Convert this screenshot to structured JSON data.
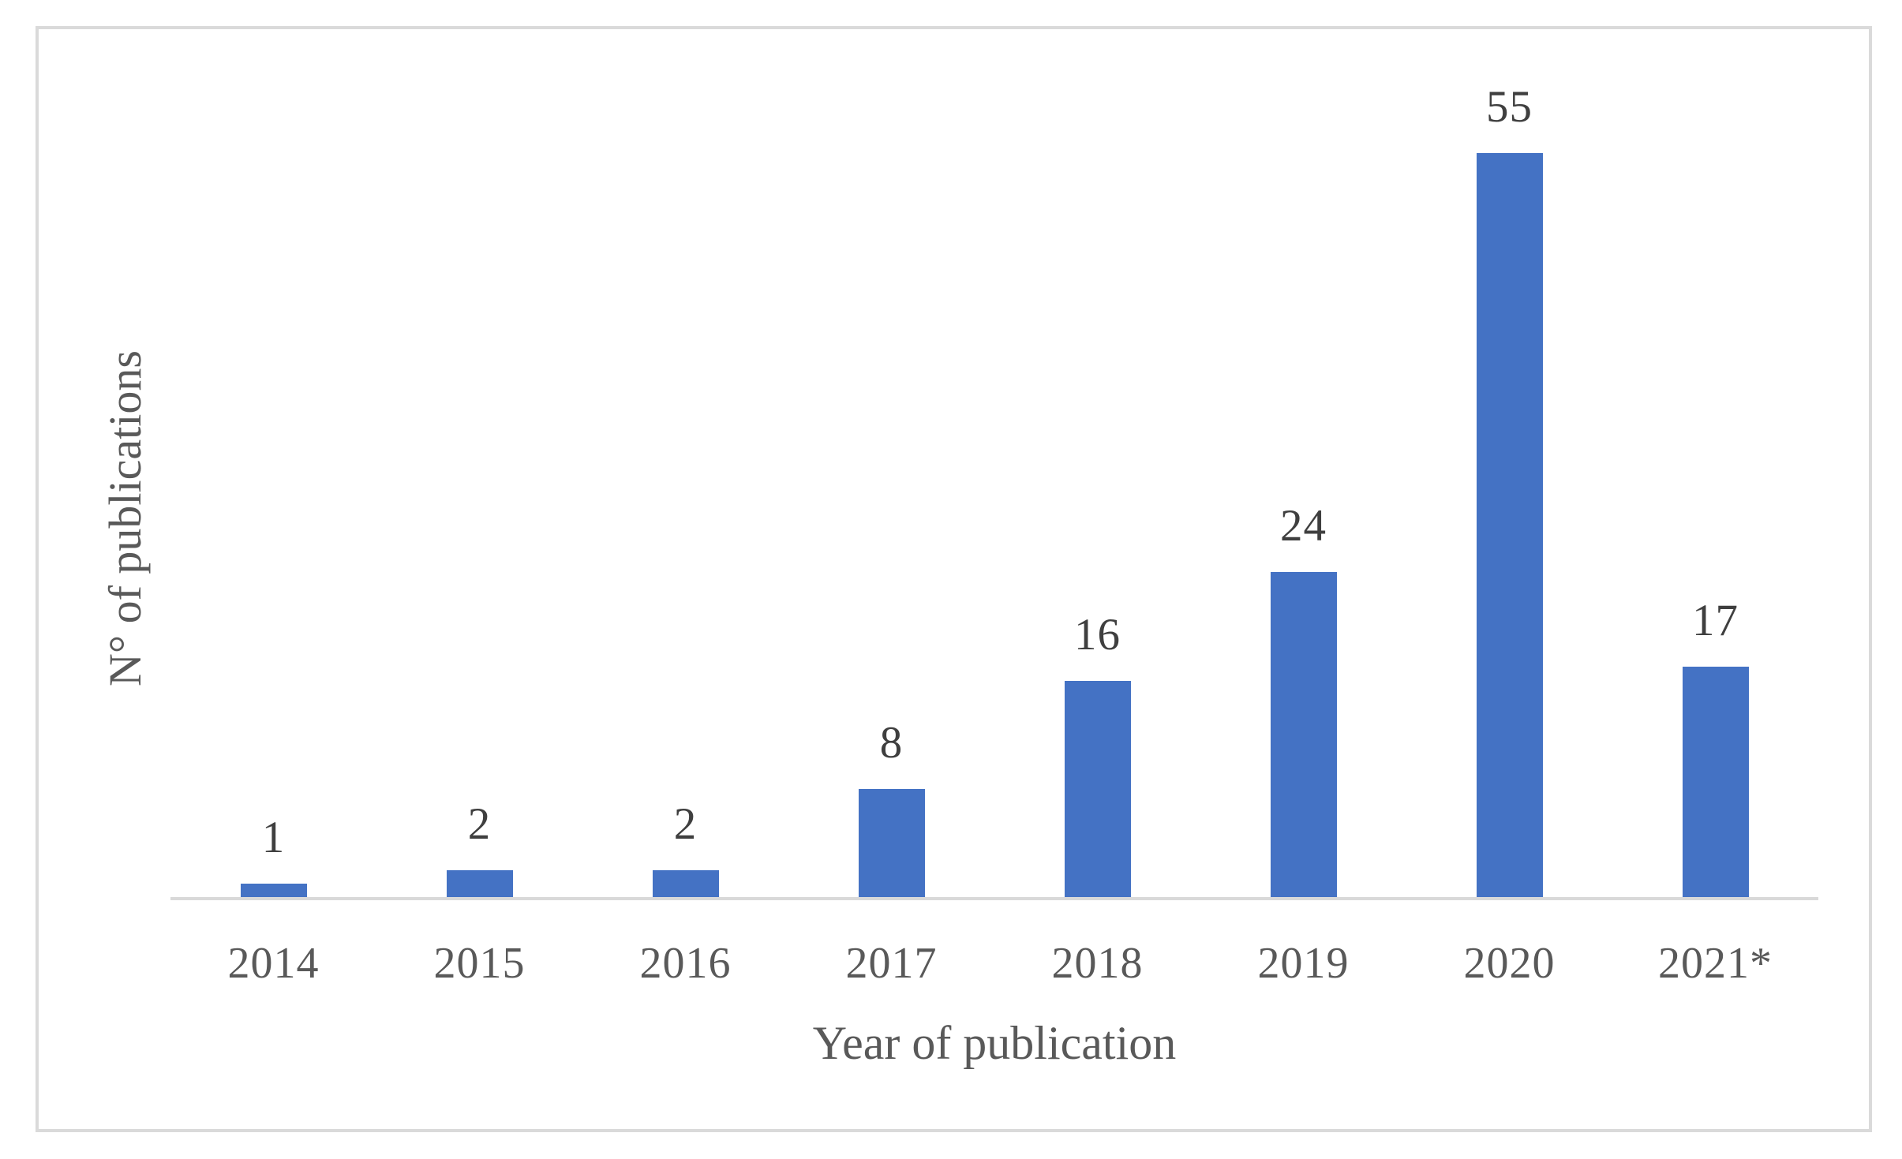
{
  "figure": {
    "background": "#ffffff",
    "border_color": "#dadada"
  },
  "chart_data": {
    "type": "bar",
    "title": "",
    "categories": [
      "2014",
      "2015",
      "2016",
      "2017",
      "2018",
      "2019",
      "2020",
      "2021*"
    ],
    "values": [
      1,
      2,
      2,
      8,
      16,
      24,
      55,
      17
    ],
    "data_labels": [
      "1",
      "2",
      "2",
      "8",
      "16",
      "24",
      "55",
      "17"
    ],
    "xlabel": "Year of publication",
    "ylabel": "N° of publications",
    "ylim": [
      0,
      60
    ],
    "grid": false,
    "legend": "none",
    "data_labels_visible": true,
    "bar_color": "#4472C4",
    "axis_line_color": "#D9D9D9",
    "tick_label_color": "#595959",
    "data_label_color": "#3F3F3F"
  }
}
